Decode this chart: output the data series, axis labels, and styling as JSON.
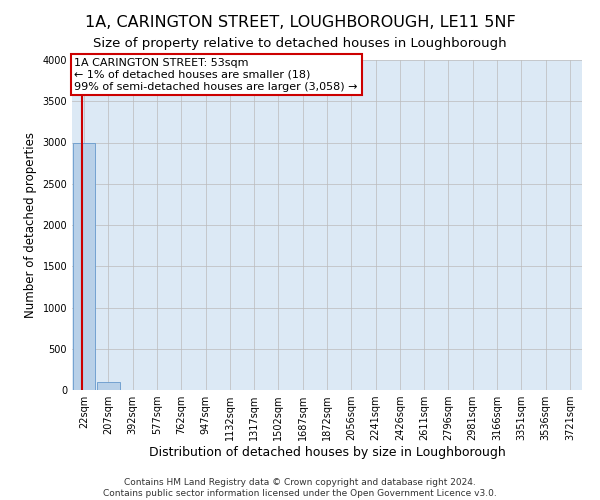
{
  "title": "1A, CARINGTON STREET, LOUGHBOROUGH, LE11 5NF",
  "subtitle": "Size of property relative to detached houses in Loughborough",
  "xlabel": "Distribution of detached houses by size in Loughborough",
  "ylabel": "Number of detached properties",
  "footnote1": "Contains HM Land Registry data © Crown copyright and database right 2024.",
  "footnote2": "Contains public sector information licensed under the Open Government Licence v3.0.",
  "bar_labels": [
    "22sqm",
    "207sqm",
    "392sqm",
    "577sqm",
    "762sqm",
    "947sqm",
    "1132sqm",
    "1317sqm",
    "1502sqm",
    "1687sqm",
    "1872sqm",
    "2056sqm",
    "2241sqm",
    "2426sqm",
    "2611sqm",
    "2796sqm",
    "2981sqm",
    "3166sqm",
    "3351sqm",
    "3536sqm",
    "3721sqm"
  ],
  "bar_values": [
    3000,
    100,
    2,
    1,
    1,
    1,
    1,
    1,
    1,
    1,
    1,
    1,
    1,
    1,
    1,
    1,
    1,
    1,
    1,
    1,
    1
  ],
  "bar_color": "#b8d0e8",
  "bar_edgecolor": "#6699cc",
  "annotation_line1": "1A CARINGTON STREET: 53sqm",
  "annotation_line2": "← 1% of detached houses are smaller (18)",
  "annotation_line3": "99% of semi-detached houses are larger (3,058) →",
  "annotation_box_edgecolor": "#cc0000",
  "annotation_box_facecolor": "white",
  "property_line_color": "#cc0000",
  "ylim": [
    0,
    4000
  ],
  "yticks": [
    0,
    500,
    1000,
    1500,
    2000,
    2500,
    3000,
    3500,
    4000
  ],
  "grid_color": "#bbbbbb",
  "bg_color": "#dce9f5",
  "title_fontsize": 11.5,
  "subtitle_fontsize": 9.5,
  "xlabel_fontsize": 9,
  "ylabel_fontsize": 8.5,
  "tick_fontsize": 7,
  "annotation_fontsize": 8,
  "footnote_fontsize": 6.5
}
